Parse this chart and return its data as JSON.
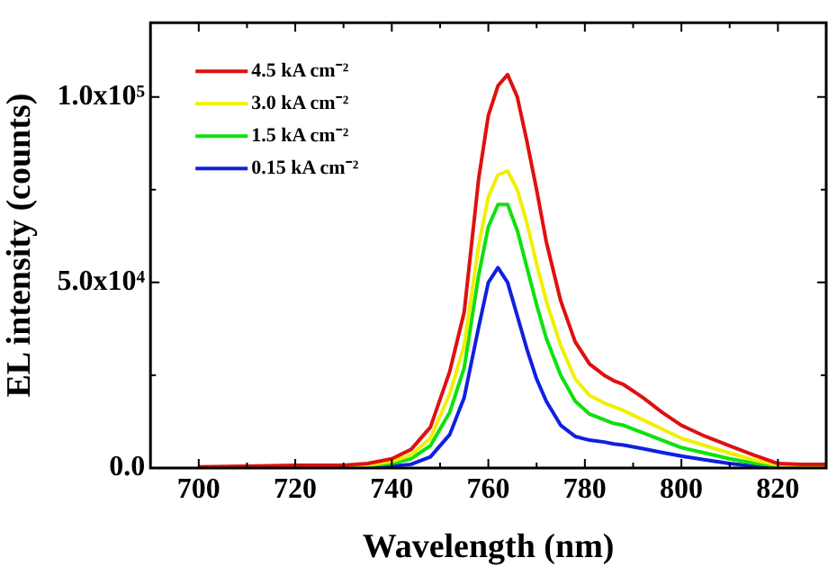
{
  "chart_data": {
    "type": "line",
    "xlabel": "Wavelength (nm)",
    "ylabel": "EL intensity (counts)",
    "x": [
      700,
      710,
      720,
      730,
      735,
      740,
      744,
      748,
      752,
      755,
      758,
      760,
      762,
      764,
      766,
      768,
      770,
      772,
      775,
      778,
      781,
      784,
      786,
      788,
      792,
      796,
      800,
      805,
      810,
      815,
      820,
      825,
      830
    ],
    "series": [
      {
        "name": "4.5 kA cm⁻²",
        "color": "#e01010",
        "values": [
          300,
          500,
          700,
          700,
          1200,
          2500,
          5000,
          11000,
          26000,
          42000,
          78000,
          95000,
          103000,
          106000,
          100000,
          88000,
          75000,
          61000,
          45000,
          34000,
          28000,
          25000,
          23500,
          22500,
          19000,
          15000,
          11500,
          8500,
          6000,
          3500,
          1200,
          1000,
          1000
        ]
      },
      {
        "name": "3.0 kA cm⁻²",
        "color": "#f0f000",
        "values": [
          null,
          null,
          null,
          500,
          800,
          1800,
          3500,
          8000,
          20000,
          33000,
          60000,
          73000,
          79000,
          80000,
          75000,
          66000,
          55000,
          45000,
          33000,
          24000,
          19500,
          17500,
          16500,
          15500,
          13000,
          10500,
          8000,
          6000,
          4000,
          2200,
          800,
          700,
          700
        ]
      },
      {
        "name": "1.5 kA cm⁻²",
        "color": "#10e010",
        "values": [
          null,
          null,
          null,
          400,
          600,
          1200,
          2500,
          6000,
          15000,
          27000,
          52000,
          65000,
          71000,
          71000,
          64000,
          54000,
          44000,
          35000,
          25000,
          18000,
          14500,
          13000,
          12000,
          11500,
          9500,
          7500,
          5500,
          4000,
          2500,
          1300,
          400,
          300,
          300
        ]
      },
      {
        "name": "0.15 kA cm⁻²",
        "color": "#1020e0",
        "values": [
          null,
          null,
          null,
          300,
          300,
          500,
          1000,
          3000,
          9000,
          19000,
          38000,
          50000,
          54000,
          50000,
          41000,
          32000,
          24000,
          18000,
          11500,
          8500,
          7500,
          7000,
          6500,
          6200,
          5200,
          4200,
          3200,
          2200,
          1200,
          500,
          100,
          null,
          null
        ]
      }
    ],
    "xlim": [
      690,
      830
    ],
    "xticks": [
      700,
      {
        "value": 710,
        "label": null
      },
      720,
      {
        "value": 730,
        "label": null
      },
      740,
      {
        "value": 750,
        "label": null
      },
      760,
      {
        "value": 770,
        "label": null
      },
      780,
      {
        "value": 790,
        "label": null
      },
      800,
      {
        "value": 810,
        "label": null
      },
      820
    ],
    "ylim": [
      0,
      120000
    ],
    "yticks": [
      {
        "value": 0,
        "label": "0.0"
      },
      {
        "value": 25000,
        "label": null
      },
      {
        "value": 50000,
        "label": "5.0x10⁴"
      },
      {
        "value": 75000,
        "label": null
      },
      {
        "value": 100000,
        "label": "1.0x10⁵"
      }
    ],
    "legend": "top left",
    "marker": "none",
    "line_style": "solid",
    "grid": false
  }
}
